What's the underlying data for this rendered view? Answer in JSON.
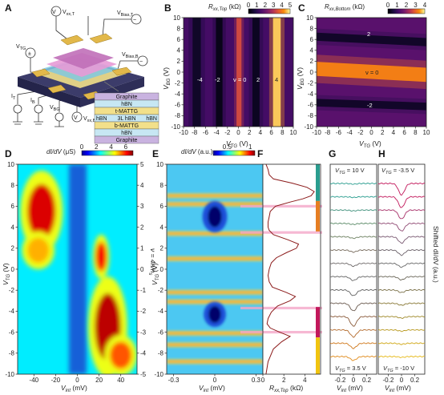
{
  "panel_labels": {
    "a": "A",
    "b": "B",
    "c": "C",
    "d": "D",
    "e": "E",
    "f": "F",
    "g": "G",
    "h": "H"
  },
  "schematic": {
    "labels": {
      "vxx_t": "V",
      "vxx_t_sub": "xx,T",
      "vbias_t": "V",
      "vbias_t_sub": "Bias,T",
      "vtg": "V",
      "vtg_sub": "TG",
      "vbias_b": "V",
      "vbias_b_sub": "Bias,B",
      "it": "I",
      "it_sub": "T",
      "ib": "I",
      "ib_sub": "B",
      "vbg": "V",
      "vbg_sub": "BG",
      "vxx_b": "V",
      "vxx_b_sub": "xx,B"
    },
    "stack": [
      {
        "label": "Graphite",
        "color": "#c9b3e0"
      },
      {
        "label": "hBN",
        "color": "#c7e7f3"
      },
      {
        "label": "t-MATTG",
        "color": "#f2e08a"
      },
      {
        "label": "3L hBN",
        "color": "#c7e7f3"
      },
      {
        "label": "b-MATTG",
        "color": "#f2e08a"
      },
      {
        "label": "hBN",
        "color": "#c7e7f3"
      },
      {
        "label": "Graphite",
        "color": "#c9b3e0"
      }
    ],
    "side_labels": {
      "left": "hBN",
      "right": "hBN"
    }
  },
  "colors": {
    "inferno_low": "#000004",
    "inferno_mid": "#b63655",
    "inferno_high": "#fcffa4",
    "jet_low": "#00008f",
    "jet_mid": "#7fff7f",
    "jet_high": "#800000",
    "trace_red": "#8b1a1a",
    "highlight_pink": "#f4a6c8"
  },
  "chart_data": [
    {
      "id": "B",
      "type": "heatmap",
      "title": "R",
      "title_sub": "xx,Top",
      "title_unit": "(kΩ)",
      "colorbar_ticks": [
        "0",
        "1",
        "2",
        "3",
        "4",
        "5"
      ],
      "colorbar_range": [
        0,
        5
      ],
      "xlabel": "V",
      "xlabel_sub": "TG",
      "xlabel_unit": "(V)",
      "ylabel": "V",
      "ylabel_sub": "BG",
      "ylabel_unit": "(V)",
      "xlim": [
        -10,
        10
      ],
      "ylim": [
        -10,
        10
      ],
      "x_ticks": [
        "-10",
        "-8",
        "-6",
        "-4",
        "-2",
        "0",
        "2",
        "4",
        "6",
        "8",
        "10"
      ],
      "y_ticks": [
        "-10",
        "-8",
        "-6",
        "-4",
        "-2",
        "0",
        "2",
        "4",
        "6",
        "8",
        "10"
      ],
      "annotations": [
        "-4",
        "-2",
        "ν = 0",
        "2",
        "4"
      ],
      "stripes": [
        {
          "x": -7.6,
          "width": 1.5,
          "value": 0.3
        },
        {
          "x": -3.5,
          "width": 1.2,
          "value": 0.1
        },
        {
          "x": 0.1,
          "width": 0.9,
          "value": 3.4
        },
        {
          "x": 3.2,
          "width": 1.3,
          "value": 0.2
        },
        {
          "x": 7.0,
          "width": 1.4,
          "value": 4.8
        }
      ],
      "background_value": 1.4
    },
    {
      "id": "C",
      "type": "heatmap",
      "title": "R",
      "title_sub": "xx,Bottom",
      "title_unit": "(kΩ)",
      "colorbar_ticks": [
        "0",
        "1",
        "2",
        "3",
        "4"
      ],
      "colorbar_range": [
        0,
        4
      ],
      "xlabel": "V",
      "xlabel_sub": "TG",
      "xlabel_unit": "(V)",
      "ylabel": "V",
      "ylabel_sub": "BG",
      "ylabel_unit": "(V)",
      "xlim": [
        -10,
        10
      ],
      "ylim": [
        -10,
        10
      ],
      "x_ticks": [
        "-10",
        "-8",
        "-6",
        "-4",
        "-2",
        "0",
        "2",
        "4",
        "6",
        "8",
        "10"
      ],
      "y_ticks": [
        "-10",
        "-8",
        "-6",
        "-4",
        "-2",
        "0",
        "2",
        "4",
        "6",
        "8",
        "10"
      ],
      "annotations": [
        "2",
        "ν = 0",
        "-2"
      ],
      "bands": [
        {
          "y_left": 6.5,
          "y_right": 5.5,
          "width": 1.5,
          "value": 0.2
        },
        {
          "y_left": 0.6,
          "y_right": -0.5,
          "width": 2.6,
          "value": 3.4
        },
        {
          "y_left": -5.6,
          "y_right": -6.3,
          "width": 1.4,
          "value": 0.2
        }
      ],
      "background_value": 1.4
    },
    {
      "id": "D",
      "type": "heatmap",
      "title": "dI/dV",
      "title_unit": "(μS)",
      "colorbar_ticks": [
        "0",
        "2",
        "4",
        "6"
      ],
      "colorbar_range": [
        0,
        7
      ],
      "xlabel": "V",
      "xlabel_sub": "int",
      "xlabel_unit": "(mV)",
      "ylabel": "V",
      "ylabel_sub": "TG",
      "ylabel_unit": "(V)",
      "y2label": "ν = 4n/n",
      "y2label_sub": "s",
      "xlim": [
        -55,
        55
      ],
      "ylim": [
        -10,
        10
      ],
      "x_ticks": [
        "-40",
        "-20",
        "0",
        "20",
        "40"
      ],
      "y_ticks": [
        "-10",
        "-8",
        "-6",
        "-4",
        "-2",
        "0",
        "2",
        "4",
        "6",
        "8",
        "10"
      ],
      "y2_ticks": [
        "5",
        "4",
        "3",
        "2",
        "1",
        "0",
        "-1",
        "-2",
        "-3",
        "-4",
        "-5"
      ],
      "blobs": [
        {
          "x": -33,
          "y": 5.5,
          "rx": 13,
          "ry": 2.6,
          "value": 6.4
        },
        {
          "x": -36,
          "y": 1.8,
          "rx": 10,
          "ry": 1.2,
          "value": 5.0
        },
        {
          "x": 28,
          "y": -5.5,
          "rx": 12,
          "ry": 3.2,
          "value": 6.6
        },
        {
          "x": 22,
          "y": 1.2,
          "rx": 5,
          "ry": 1.4,
          "value": 6.2
        },
        {
          "x": 40,
          "y": -8.2,
          "rx": 10,
          "ry": 1.3,
          "value": 5.6
        }
      ],
      "background_value": 2.4
    },
    {
      "id": "E",
      "type": "heatmap",
      "title": "dI/dV",
      "title_unit": "(a.u.)",
      "colorbar_ticks": [
        "0.5",
        "1"
      ],
      "colorbar_range": [
        0.2,
        1.1
      ],
      "xlabel": "V",
      "xlabel_sub": "int",
      "xlabel_unit": "(mV)",
      "ylabel": "V",
      "ylabel_sub": "TG",
      "ylabel_unit": "(V)",
      "xlim": [
        -0.35,
        0.35
      ],
      "ylim": [
        -10,
        10
      ],
      "x_ticks": [
        "-0.3",
        "0",
        "0.3"
      ],
      "y_ticks": [
        "-10",
        "-8",
        "-6",
        "-4",
        "-2",
        "0",
        "2",
        "4",
        "6",
        "8",
        "10"
      ],
      "gaps": [
        {
          "y": 5.0,
          "half_height": 1.0,
          "half_width": 0.05
        },
        {
          "y": -4.3,
          "half_height": 0.8,
          "half_width": 0.045
        }
      ],
      "bright_rows": [
        7.0,
        6.2,
        3.4,
        1.0,
        -2.2,
        -3.1,
        -6.1,
        -7.2,
        -8.8
      ]
    },
    {
      "id": "F",
      "type": "line",
      "xlabel": "R",
      "xlabel_sub": "xx,Top",
      "xlabel_unit": "(kΩ)",
      "xlim": [
        0,
        5.5
      ],
      "x_ticks": [
        "0",
        "2",
        "4"
      ],
      "orientation": "vertical",
      "series": [
        {
          "x": [
            0.3,
            0.5,
            0.6,
            1.0,
            2.8,
            4.2,
            4.9,
            4.6,
            3.8,
            2.6,
            1.2,
            0.7,
            0.6,
            0.5,
            0.5,
            0.6,
            1.0,
            2.4,
            3.4,
            3.2,
            2.3,
            1.3,
            0.8,
            0.6,
            0.5,
            0.6,
            0.9,
            2.2,
            3.1,
            2.6,
            1.4,
            0.8,
            0.5,
            0.4,
            0.7,
            1.6,
            2.6,
            1.8,
            1.0,
            0.5,
            0.3
          ],
          "y": [
            10,
            9.5,
            9.0,
            8.6,
            8.2,
            7.8,
            7.4,
            7.0,
            6.7,
            6.4,
            6.0,
            5.5,
            5.0,
            4.5,
            4.0,
            3.7,
            3.3,
            2.8,
            2.4,
            2.0,
            1.6,
            1.1,
            0.6,
            0.0,
            -0.6,
            -1.2,
            -1.7,
            -2.2,
            -2.6,
            -3.0,
            -3.5,
            -4.1,
            -4.7,
            -5.2,
            -5.6,
            -6.0,
            -6.4,
            -6.9,
            -7.6,
            -8.8,
            -10
          ]
        }
      ],
      "highlights_y": [
        6.0,
        3.5,
        -3.7,
        -6.0
      ],
      "legend_bars": {
        "top": [
          "#2a9d8f",
          "#e67e22"
        ],
        "bottom": [
          "#c2185b",
          "#f1c40f"
        ]
      }
    },
    {
      "id": "G",
      "type": "line",
      "title": "V",
      "title_sub": "TG",
      "title_value": " = 10 V",
      "bottom_label": "V",
      "bottom_label_sub": "TG",
      "bottom_label_value": " = 3.5 V",
      "xlabel": "V",
      "xlabel_sub": "int",
      "xlabel_unit": "(mV)",
      "xlim": [
        -0.35,
        0.35
      ],
      "x_ticks": [
        "-0.2",
        "0",
        "0.2"
      ],
      "curves": [
        {
          "depth": 0.05,
          "color": "#2a9d8f"
        },
        {
          "depth": 0.05,
          "color": "#2a9d8f"
        },
        {
          "depth": 0.06,
          "color": "#3d8f7a"
        },
        {
          "depth": 0.08,
          "color": "#5a8a66"
        },
        {
          "depth": 0.12,
          "color": "#6d8060"
        },
        {
          "depth": 0.16,
          "color": "#7a6e60"
        },
        {
          "depth": 0.22,
          "color": "#6f6a6a"
        },
        {
          "depth": 0.3,
          "color": "#666666"
        },
        {
          "depth": 0.45,
          "color": "#606060"
        },
        {
          "depth": 0.6,
          "color": "#6b5b50"
        },
        {
          "depth": 0.75,
          "color": "#8a5a3a"
        },
        {
          "depth": 0.55,
          "color": "#b36a2c"
        },
        {
          "depth": 0.4,
          "color": "#d07a1e"
        },
        {
          "depth": 0.3,
          "color": "#e08a1a"
        }
      ]
    },
    {
      "id": "H",
      "type": "line",
      "title": "V",
      "title_sub": "TG",
      "title_value": " = -3.5 V",
      "bottom_label": "V",
      "bottom_label_sub": "TG",
      "bottom_label_value": " = -10 V",
      "xlabel": "V",
      "xlabel_sub": "int",
      "xlabel_unit": "(mV)",
      "y2label": "Shifted dI/dV (a.u.)",
      "xlim": [
        -0.35,
        0.35
      ],
      "x_ticks": [
        "-0.2",
        "0",
        "0.2"
      ],
      "curves": [
        {
          "depth": 0.9,
          "color": "#c2185b"
        },
        {
          "depth": 0.85,
          "color": "#c2185b"
        },
        {
          "depth": 0.7,
          "color": "#a8326a"
        },
        {
          "depth": 0.6,
          "color": "#8f4872"
        },
        {
          "depth": 0.5,
          "color": "#7a5a72"
        },
        {
          "depth": 0.4,
          "color": "#6a6068"
        },
        {
          "depth": 0.3,
          "color": "#666666"
        },
        {
          "depth": 0.25,
          "color": "#6a6658"
        },
        {
          "depth": 0.2,
          "color": "#7a7048"
        },
        {
          "depth": 0.15,
          "color": "#8a7a38"
        },
        {
          "depth": 0.12,
          "color": "#a08a2a"
        },
        {
          "depth": 0.1,
          "color": "#b8981e"
        },
        {
          "depth": 0.08,
          "color": "#d0a818"
        },
        {
          "depth": 0.06,
          "color": "#e6b814"
        }
      ]
    }
  ]
}
